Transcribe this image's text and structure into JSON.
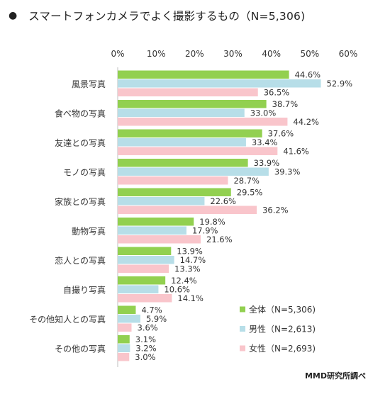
{
  "title_bullet": "●",
  "title": "スマートフォンカメラでよく撮影するもの（N=5,306)",
  "source": "MMD研究所調べ",
  "colors": {
    "all": "#92d050",
    "male": "#b7dee8",
    "female": "#f9c5cb"
  },
  "chart_data": {
    "type": "bar",
    "orientation": "horizontal",
    "title": "スマートフォンカメラでよく撮影するもの（N=5,306)",
    "categories": [
      "風景写真",
      "食べ物の写真",
      "友達との写真",
      "モノの写真",
      "家族との写真",
      "動物写真",
      "恋人との写真",
      "自撮り写真",
      "その他知人との写真",
      "その他の写真"
    ],
    "series": [
      {
        "name": "全体（N=5,306)",
        "key": "all",
        "values": [
          44.6,
          38.7,
          37.6,
          33.9,
          29.5,
          19.8,
          13.9,
          12.4,
          4.7,
          3.1
        ]
      },
      {
        "name": "男性（N=2,613)",
        "key": "male",
        "values": [
          52.9,
          33.0,
          33.4,
          39.3,
          22.6,
          17.9,
          14.7,
          10.6,
          5.9,
          3.2
        ]
      },
      {
        "name": "女性（N=2,693)",
        "key": "female",
        "values": [
          36.5,
          44.2,
          41.6,
          28.7,
          36.2,
          21.6,
          13.3,
          14.1,
          3.6,
          3.0
        ]
      }
    ],
    "xlim": [
      0,
      60
    ],
    "ticks": [
      0,
      10,
      20,
      30,
      40,
      50,
      60
    ],
    "tick_labels": [
      "0%",
      "10%",
      "20%",
      "30%",
      "40%",
      "50%",
      "60%"
    ],
    "grid": false,
    "legend_position": "bottom-right"
  }
}
